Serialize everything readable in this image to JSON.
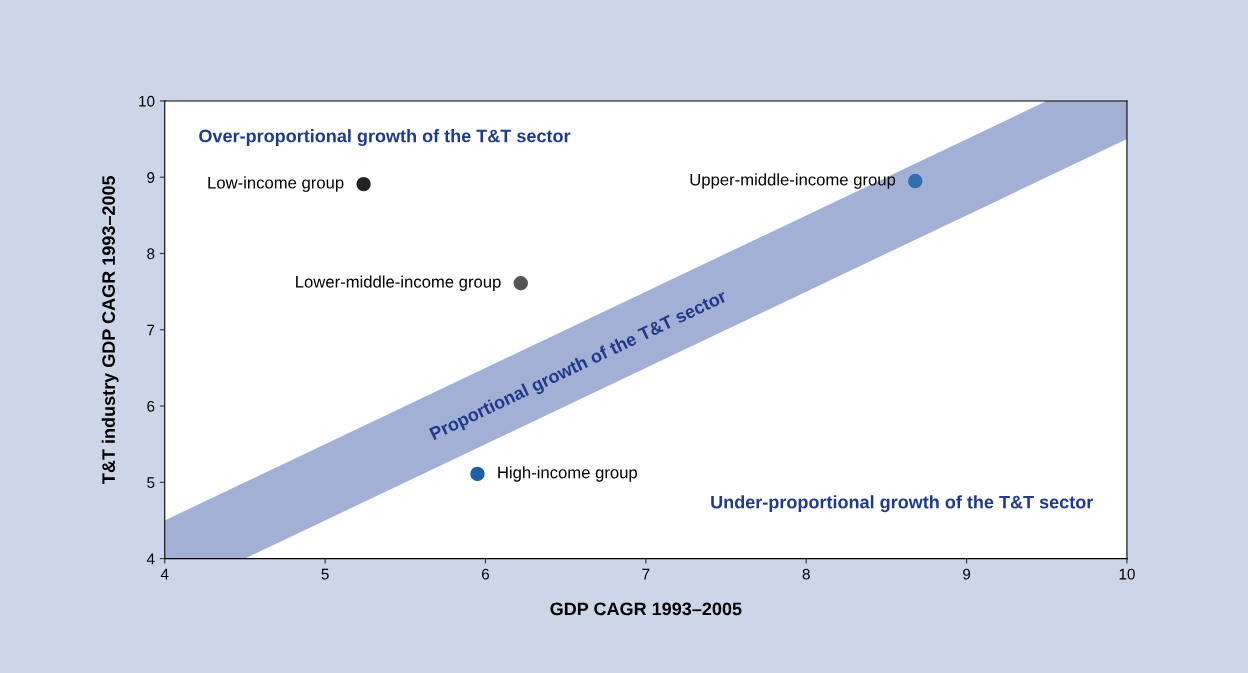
{
  "chart_data": {
    "type": "scatter",
    "xlabel": "GDP CAGR 1993–2005",
    "ylabel": "T&T industry GDP CAGR 1993–2005",
    "xlim": [
      4,
      10
    ],
    "ylim": [
      4,
      10
    ],
    "xticks": [
      4,
      5,
      6,
      7,
      8,
      9,
      10
    ],
    "yticks": [
      4,
      5,
      6,
      7,
      8,
      9,
      10
    ],
    "grid": false,
    "legend": false,
    "series": [
      {
        "type": "area",
        "color": "#a3b0d6",
        "x": [
          4,
          9.5,
          10
        ],
        "values": [
          4.5,
          10,
          10
        ]
      },
      {
        "type": "area",
        "color": "#ffffff",
        "x": [
          4.5,
          10
        ],
        "values": [
          4,
          9.5
        ]
      },
      {
        "name": "Low-income group",
        "marker": "circle",
        "color": "#222222",
        "x": [
          5.24
        ],
        "values": [
          8.91
        ]
      },
      {
        "name": "Lower-middle-income group",
        "marker": "circle",
        "color": "#555555",
        "x": [
          6.22
        ],
        "values": [
          7.61
        ]
      },
      {
        "name": "Upper-middle-income group",
        "marker": "circle",
        "color": "#2f6fb0",
        "x": [
          8.68
        ],
        "values": [
          8.95
        ]
      },
      {
        "name": "High-income group",
        "marker": "circle",
        "color": "#1f5fa8",
        "x": [
          5.95
        ],
        "values": [
          5.11
        ]
      }
    ],
    "annotations": [
      "Over-proportional growth of the T&T sector",
      "Proportional growth of the T&T sector",
      "Under-proportional growth of the T&T sector"
    ]
  }
}
